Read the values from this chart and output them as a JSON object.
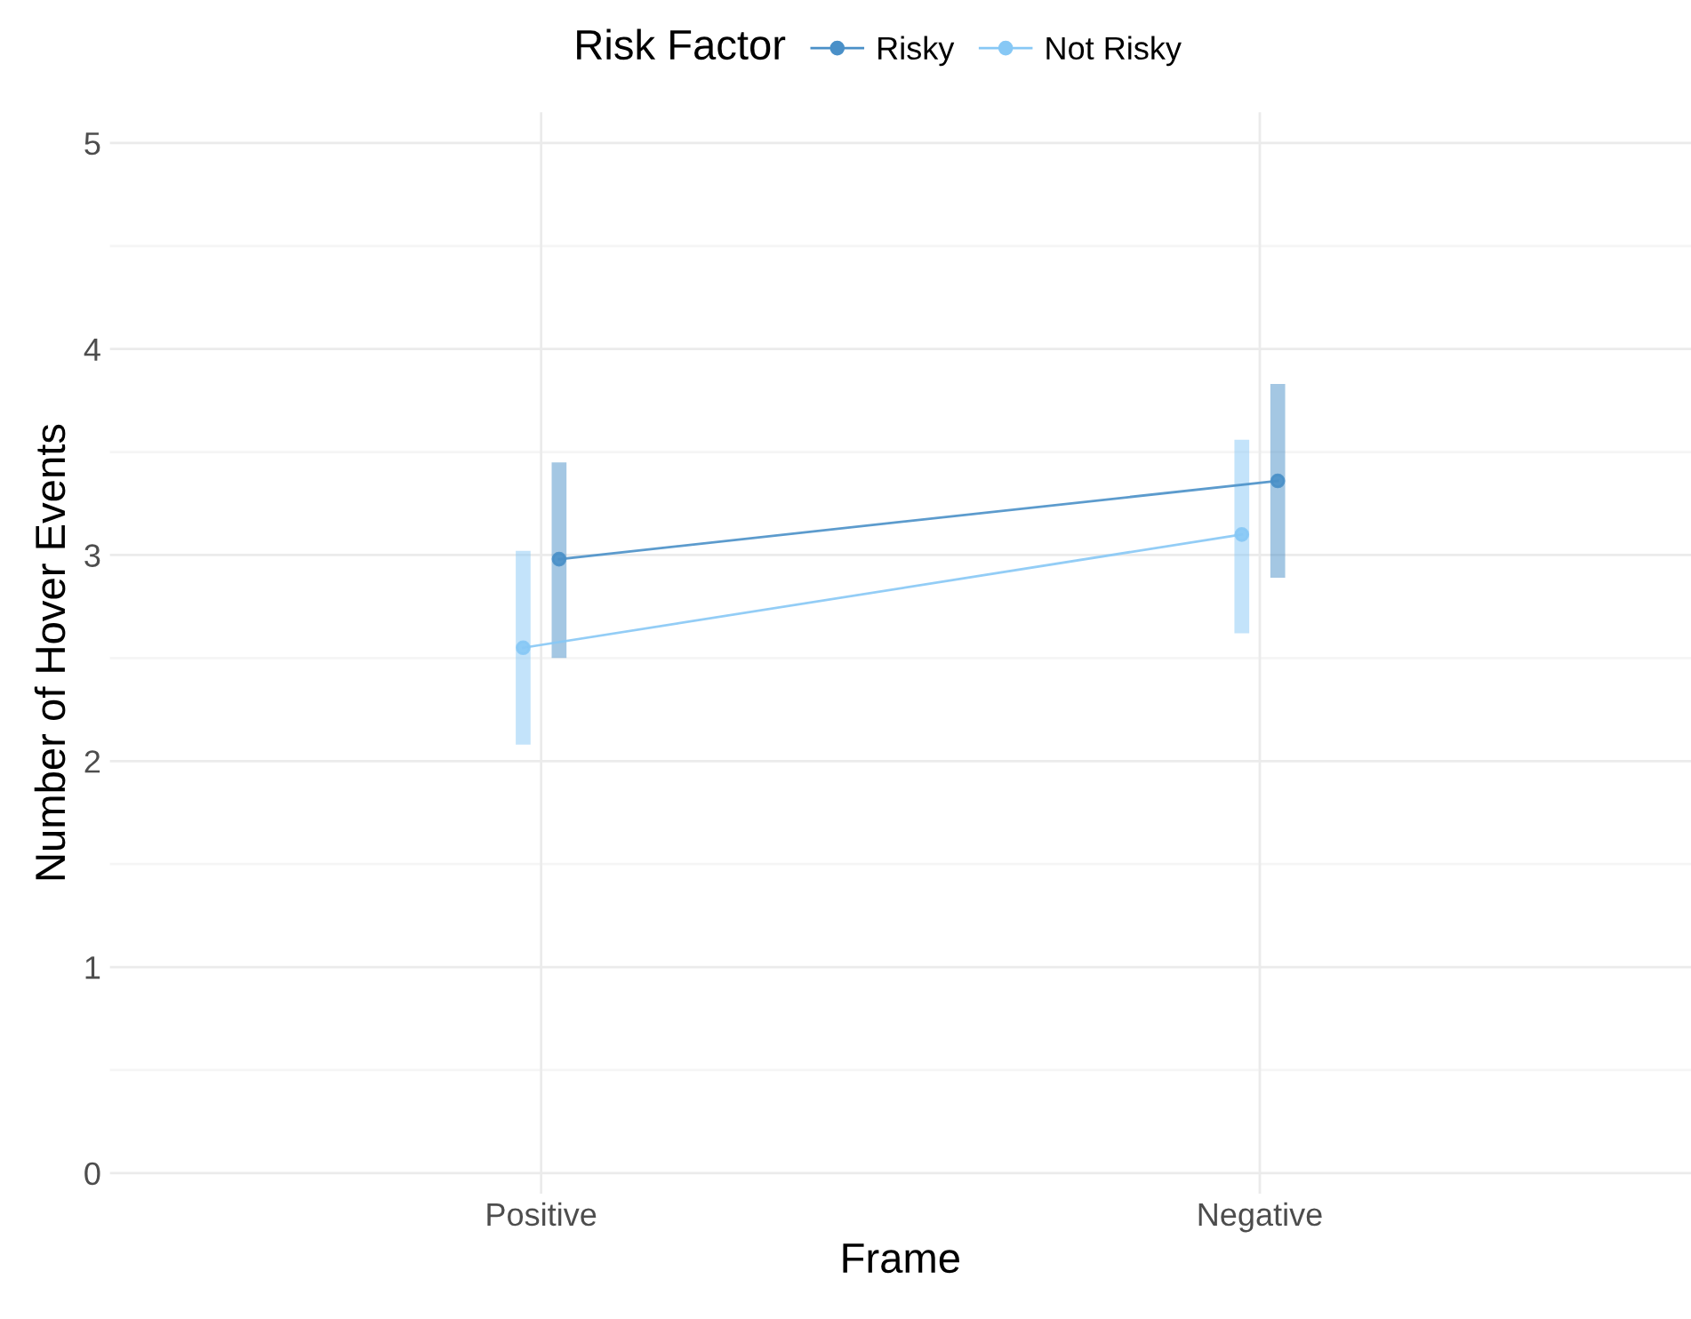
{
  "chart_data": {
    "type": "line",
    "xlabel": "Frame",
    "ylabel": "Number of Hover Events",
    "legend_title": "Risk Factor",
    "categories": [
      "Positive",
      "Negative"
    ],
    "series": [
      {
        "name": "Risky",
        "color": "#4a90c8",
        "values": [
          2.98,
          3.36
        ],
        "errors": [
          [
            2.5,
            3.45
          ],
          [
            2.89,
            3.83
          ]
        ]
      },
      {
        "name": "Not Risky",
        "color": "#87c8f5",
        "values": [
          2.55,
          3.1
        ],
        "errors": [
          [
            2.08,
            3.02
          ],
          [
            2.62,
            3.56
          ]
        ]
      }
    ],
    "ylim": [
      -0.1,
      5.15
    ],
    "yticks": [
      0,
      {
        "value": 0.5,
        "label": null
      },
      1,
      {
        "value": 1.5,
        "label": null
      },
      2,
      {
        "value": 2.5,
        "label": null
      },
      3,
      {
        "value": 3.5,
        "label": null
      },
      4,
      {
        "value": 4.5,
        "label": null
      },
      5
    ],
    "grid": true,
    "legend": "top",
    "marker": "circle",
    "line_style": "solid"
  }
}
